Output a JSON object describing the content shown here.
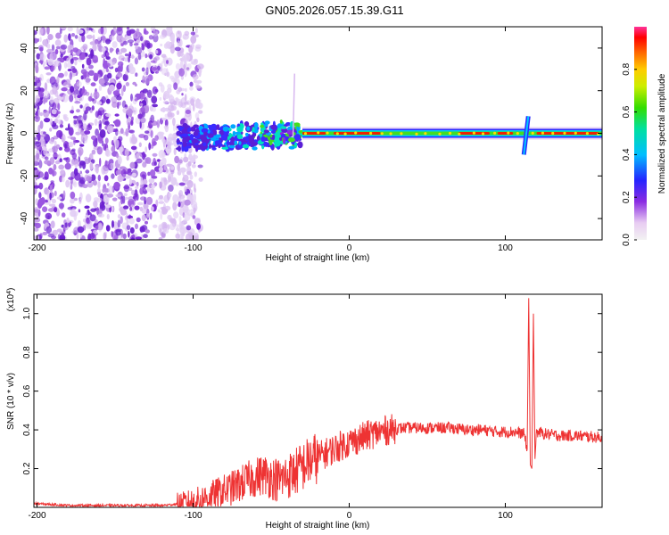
{
  "title": "GN05.2026.057.15.39.G11",
  "chart_data": [
    {
      "type": "heatmap",
      "name": "spectrogram",
      "xlabel": "Height of straight line (km)",
      "ylabel": "Frequency (Hz)",
      "xlim": [
        -202,
        162
      ],
      "ylim": [
        -50,
        50
      ],
      "xticks": [
        -200,
        -100,
        0,
        100
      ],
      "yticks": [
        -40,
        -20,
        0,
        20,
        40
      ],
      "colorbar": {
        "label": "Normalized spectral amplitude",
        "range": [
          0,
          1
        ],
        "ticks": [
          0.0,
          0.2,
          0.4,
          0.6,
          0.8
        ]
      },
      "features": [
        {
          "label": "noise",
          "x_range": [
            -202,
            -95
          ],
          "freq_range": [
            -50,
            50
          ]
        },
        {
          "label": "signal emerging",
          "x_range": [
            -110,
            -30
          ],
          "center_freq": -2
        },
        {
          "label": "carrier",
          "x_range": [
            -30,
            162
          ],
          "center_freq": 0
        },
        {
          "label": "disturbance",
          "x": 113,
          "freq_range": [
            -10,
            8
          ]
        }
      ]
    },
    {
      "type": "line",
      "name": "snr",
      "xlabel": "Height of straight line (km)",
      "ylabel": "SNR (10 * v/v)",
      "scale_label": "(x10^4)",
      "scale_base": "(x10",
      "scale_exp": "4",
      "scale_close": ")",
      "xlim": [
        -202,
        162
      ],
      "ylim": [
        0,
        1.1
      ],
      "xticks": [
        -200,
        -100,
        0,
        100
      ],
      "yticks": [
        0.2,
        0.4,
        0.6,
        0.8,
        1.0
      ],
      "series": [
        {
          "name": "SNR",
          "color": "#ee3333",
          "x": [
            -202,
            -180,
            -160,
            -140,
            -120,
            -105,
            -95,
            -85,
            -75,
            -65,
            -55,
            -45,
            -35,
            -25,
            -15,
            -5,
            5,
            15,
            25,
            35,
            45,
            55,
            65,
            75,
            85,
            95,
            105,
            112,
            114,
            115,
            116,
            117,
            118,
            119,
            120,
            125,
            135,
            145,
            162
          ],
          "y": [
            0.02,
            0.01,
            0.01,
            0.01,
            0.01,
            0.02,
            0.04,
            0.07,
            0.1,
            0.14,
            0.17,
            0.14,
            0.18,
            0.24,
            0.28,
            0.32,
            0.35,
            0.38,
            0.4,
            0.41,
            0.41,
            0.41,
            0.41,
            0.4,
            0.4,
            0.39,
            0.39,
            0.38,
            0.3,
            1.08,
            0.22,
            0.2,
            1.0,
            0.25,
            0.39,
            0.38,
            0.37,
            0.37,
            0.36
          ]
        }
      ]
    }
  ]
}
